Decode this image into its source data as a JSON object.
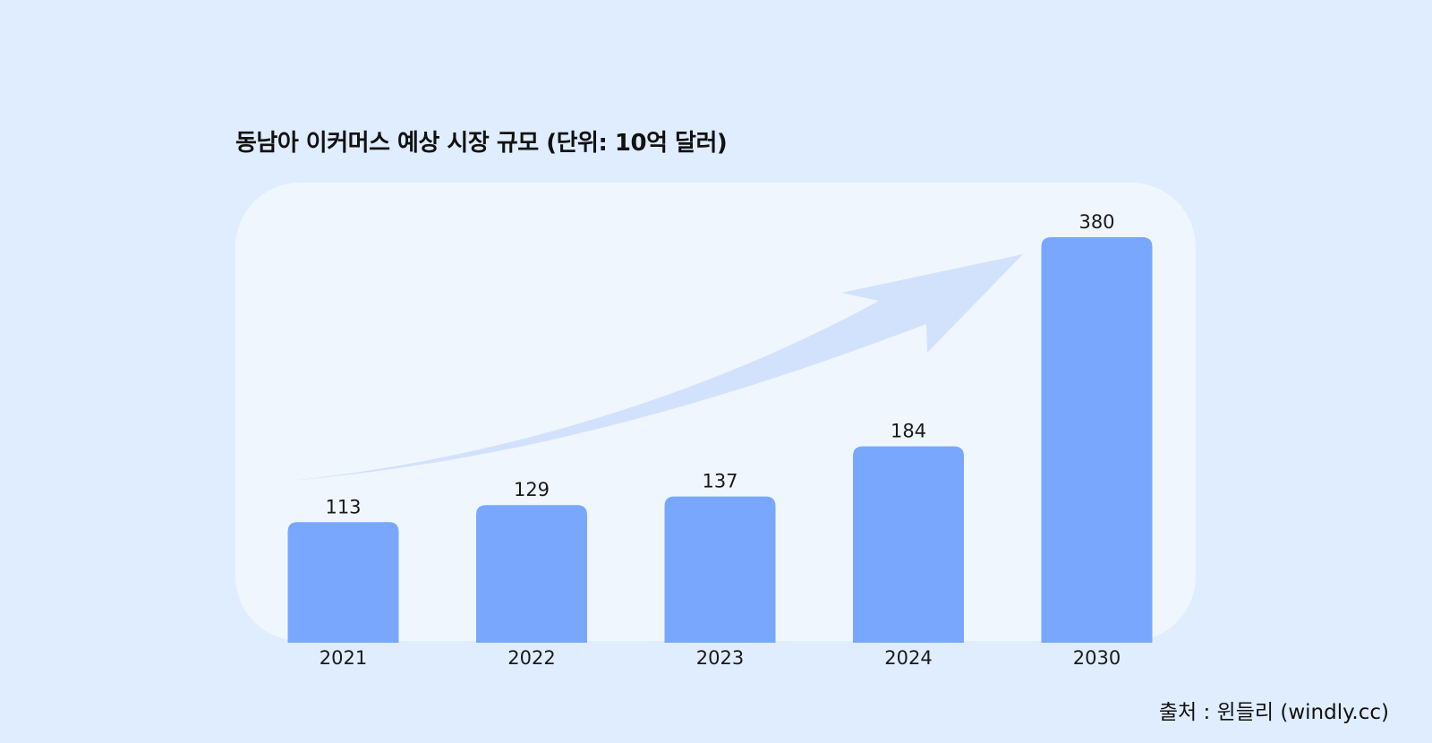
{
  "chart_data": {
    "type": "bar",
    "title": "동남아 이커머스 예상 시장 규모 (단위: 10억 달러)",
    "categories": [
      "2021",
      "2022",
      "2023",
      "2024",
      "2030"
    ],
    "values": [
      113,
      129,
      137,
      184,
      380
    ],
    "xlabel": "",
    "ylabel": "",
    "ylim": [
      0,
      380
    ],
    "grid": false,
    "data_labels": true,
    "colors": {
      "bar": "#78a7fd",
      "panel": "#eff6fe",
      "arrow": "#d3e2fc",
      "background": "#e0edfe"
    }
  },
  "source": "출처 : 윈들리 (windly.cc)"
}
